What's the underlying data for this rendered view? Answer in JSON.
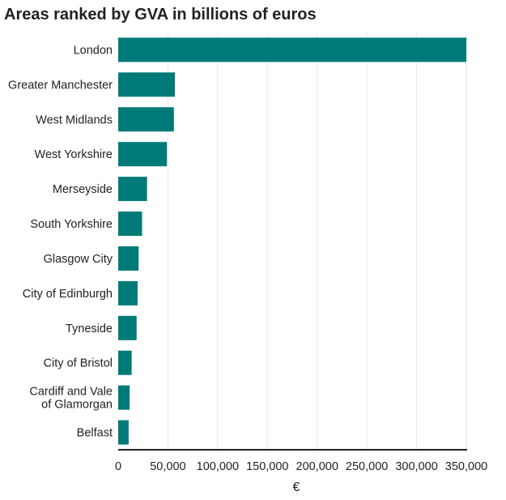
{
  "chart_data": {
    "type": "bar",
    "orientation": "horizontal",
    "title": "Areas ranked by GVA in billions of euros",
    "xlabel": "€",
    "ylabel": "",
    "categories": [
      [
        "London"
      ],
      [
        "Greater Manchester"
      ],
      [
        "West Midlands"
      ],
      [
        "West Yorkshire"
      ],
      [
        "Merseyside"
      ],
      [
        "South Yorkshire"
      ],
      [
        "Glasgow City"
      ],
      [
        "City of Edinburgh"
      ],
      [
        "Tyneside"
      ],
      [
        "City of Bristol"
      ],
      [
        "Cardiff and Vale",
        "of Glamorgan"
      ],
      [
        "Belfast"
      ]
    ],
    "values": [
      350000,
      57000,
      56000,
      49000,
      29000,
      24000,
      20500,
      19500,
      18500,
      13500,
      11500,
      10500
    ],
    "xlim": [
      0,
      350000
    ],
    "xticks": [
      0,
      50000,
      100000,
      150000,
      200000,
      250000,
      300000,
      350000
    ],
    "xtick_labels": [
      "0",
      "50,000",
      "100,000",
      "150,000",
      "200,000",
      "250,000",
      "300,000",
      "350,000"
    ],
    "grid": true,
    "legend": "none",
    "colors": {
      "bar": "#007a78",
      "grid": "#e6e6e6",
      "axis": "#222222",
      "text": "#222222"
    }
  }
}
